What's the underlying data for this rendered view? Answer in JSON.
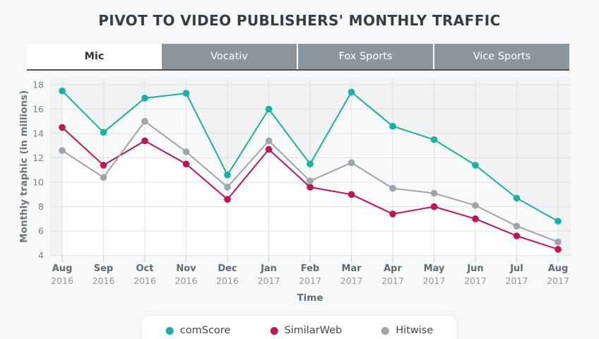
{
  "page": {
    "title": "PIVOT TO VIDEO PUBLISHERS' MONTHLY TRAFFIC"
  },
  "tabs": [
    {
      "label": "Mic",
      "active": true
    },
    {
      "label": "Vocativ",
      "active": false
    },
    {
      "label": "Fox Sports",
      "active": false
    },
    {
      "label": "Vice Sports",
      "active": false
    }
  ],
  "chart_data": {
    "type": "line",
    "title": "PIVOT TO VIDEO PUBLISHERS' MONTHLY TRAFFIC",
    "xlabel": "Time",
    "ylabel": "Monthly traphic (in millions)",
    "ylim": [
      4,
      18
    ],
    "ytick_step": 2,
    "grid": true,
    "legend_position": "bottom",
    "categories": [
      {
        "month": "Aug",
        "year": "2016"
      },
      {
        "month": "Sep",
        "year": "2016"
      },
      {
        "month": "Oct",
        "year": "2016"
      },
      {
        "month": "Nov",
        "year": "2016"
      },
      {
        "month": "Dec",
        "year": "2016"
      },
      {
        "month": "Jan",
        "year": "2017"
      },
      {
        "month": "Feb",
        "year": "2017"
      },
      {
        "month": "Mar",
        "year": "2017"
      },
      {
        "month": "Apr",
        "year": "2017"
      },
      {
        "month": "May",
        "year": "2017"
      },
      {
        "month": "Jun",
        "year": "2017"
      },
      {
        "month": "Jul",
        "year": "2017"
      },
      {
        "month": "Aug",
        "year": "2017"
      }
    ],
    "series": [
      {
        "name": "comScore",
        "color": "#16b3a2",
        "values": [
          17.5,
          14.1,
          16.9,
          17.3,
          10.6,
          16.0,
          11.5,
          17.4,
          14.6,
          13.5,
          11.4,
          8.7,
          6.8
        ]
      },
      {
        "name": "SimilarWeb",
        "color": "#c51250",
        "values": [
          14.5,
          11.4,
          13.4,
          11.5,
          8.6,
          12.7,
          9.6,
          9.0,
          7.4,
          8.0,
          7.0,
          5.6,
          4.5
        ]
      },
      {
        "name": "Hitwise",
        "color": "#9ba5ab",
        "values": [
          12.6,
          10.4,
          15.0,
          12.5,
          9.6,
          13.4,
          10.1,
          11.6,
          9.5,
          9.1,
          8.1,
          6.4,
          5.1
        ]
      }
    ]
  },
  "colors": {
    "page_bg": "#f7f8f8",
    "title_color": "#333e44",
    "tab_bg": "#8b979d",
    "tab_text": "#ffffff",
    "tab_active_bg": "#ffffff",
    "tab_active_text": "#2e3a40",
    "tab_underline": "#49545a",
    "plot_bg": "#f1f2f2",
    "grid_color": "#e0e3e3",
    "ytick_text": "#75828a",
    "month_text": "#5d6b74",
    "year_text": "#8e979e",
    "axis_title": "#68757d",
    "legend_text": "#40484d"
  }
}
